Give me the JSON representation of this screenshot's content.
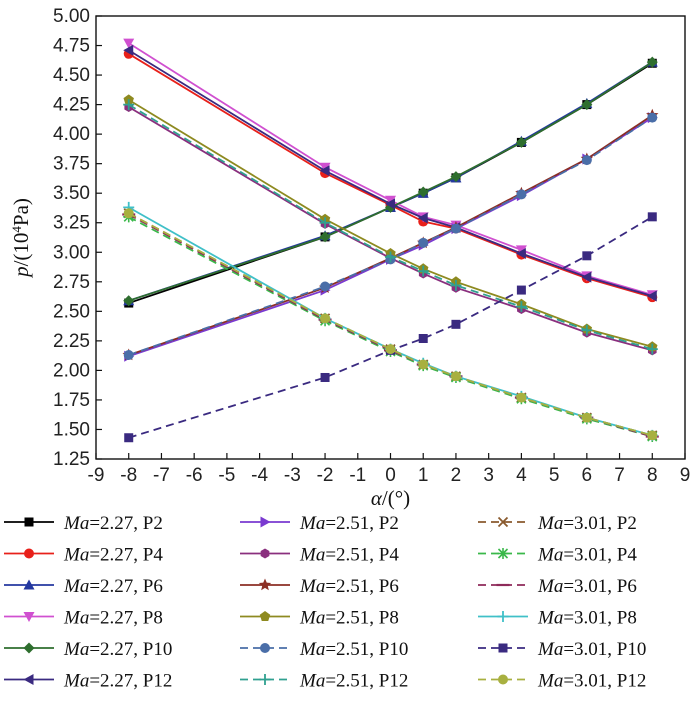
{
  "chart_data": {
    "type": "line",
    "title": "",
    "xlabel_var": "α",
    "xlabel_unit": "/(°)",
    "ylabel_var": "p",
    "ylabel_unit_pre": "/(10",
    "ylabel_unit_sup": "4",
    "ylabel_unit_post": "Pa)",
    "xlim": [
      -9,
      9
    ],
    "ylim": [
      1.25,
      5.0
    ],
    "xticks": [
      "-9",
      "-8",
      "-7",
      "-6",
      "-5",
      "-4",
      "-3",
      "-2",
      "-1",
      "0",
      "1",
      "2",
      "3",
      "4",
      "5",
      "6",
      "7",
      "8",
      "9"
    ],
    "yticks": [
      "1.25",
      "1.50",
      "1.75",
      "2.00",
      "2.25",
      "2.50",
      "2.75",
      "3.00",
      "3.25",
      "3.50",
      "3.75",
      "4.00",
      "4.25",
      "4.50",
      "4.75",
      "5.00"
    ],
    "x": [
      -8,
      -2,
      0,
      1,
      2,
      4,
      6,
      8
    ],
    "series": [
      {
        "name": "Ma=2.27, P2",
        "ma": "2.27",
        "probe": "P2",
        "color": "#000000",
        "dash": "solid",
        "marker": "square",
        "values": [
          2.57,
          3.13,
          3.38,
          3.5,
          3.63,
          3.93,
          4.25,
          4.6
        ]
      },
      {
        "name": "Ma=2.27, P4",
        "ma": "2.27",
        "probe": "P4",
        "color": "#e8201a",
        "dash": "solid",
        "marker": "circle",
        "values": [
          4.68,
          3.67,
          3.4,
          3.26,
          3.2,
          2.98,
          2.78,
          2.62
        ]
      },
      {
        "name": "Ma=2.27, P6",
        "ma": "2.27",
        "probe": "P6",
        "color": "#2438a0",
        "dash": "solid",
        "marker": "triup",
        "values": [
          2.59,
          3.14,
          3.38,
          3.5,
          3.63,
          3.94,
          4.26,
          4.61
        ]
      },
      {
        "name": "Ma=2.27, P8",
        "ma": "2.27",
        "probe": "P8",
        "color": "#d050d0",
        "dash": "solid",
        "marker": "tridown",
        "values": [
          4.77,
          3.72,
          3.44,
          3.3,
          3.23,
          3.02,
          2.8,
          2.64
        ]
      },
      {
        "name": "Ma=2.27, P10",
        "ma": "2.27",
        "probe": "P10",
        "color": "#2e6e2e",
        "dash": "solid",
        "marker": "diamond",
        "values": [
          2.59,
          3.13,
          3.38,
          3.51,
          3.64,
          3.93,
          4.25,
          4.61
        ]
      },
      {
        "name": "Ma=2.27, P12",
        "ma": "2.27",
        "probe": "P12",
        "color": "#3a2a80",
        "dash": "solid",
        "marker": "trileft",
        "values": [
          4.71,
          3.69,
          3.41,
          3.29,
          3.21,
          2.99,
          2.79,
          2.63
        ]
      },
      {
        "name": "Ma=2.51, P2",
        "ma": "2.51",
        "probe": "P2",
        "color": "#7a3ad0",
        "dash": "solid",
        "marker": "triright",
        "values": [
          2.12,
          2.68,
          2.94,
          3.06,
          3.2,
          3.48,
          3.79,
          4.14
        ]
      },
      {
        "name": "Ma=2.51, P4",
        "ma": "2.51",
        "probe": "P4",
        "color": "#8a2f7e",
        "dash": "solid",
        "marker": "hexagon",
        "values": [
          4.23,
          3.24,
          2.95,
          2.82,
          2.7,
          2.52,
          2.32,
          2.17
        ]
      },
      {
        "name": "Ma=2.51, P6",
        "ma": "2.51",
        "probe": "P6",
        "color": "#8b2e24",
        "dash": "solid",
        "marker": "star",
        "values": [
          2.13,
          2.7,
          2.95,
          3.08,
          3.21,
          3.5,
          3.79,
          4.16
        ]
      },
      {
        "name": "Ma=2.51, P8",
        "ma": "2.51",
        "probe": "P8",
        "color": "#8e8a20",
        "dash": "solid",
        "marker": "pentagon",
        "values": [
          4.29,
          3.28,
          2.99,
          2.86,
          2.75,
          2.56,
          2.35,
          2.2
        ]
      },
      {
        "name": "Ma=2.51, P10",
        "ma": "2.51",
        "probe": "P10",
        "color": "#4a6ea8",
        "dash": "dashed",
        "marker": "circle",
        "values": [
          2.13,
          2.71,
          2.94,
          3.08,
          3.2,
          3.49,
          3.78,
          4.14
        ]
      },
      {
        "name": "Ma=2.51, P12",
        "ma": "2.51",
        "probe": "P12",
        "color": "#30a090",
        "dash": "dashed",
        "marker": "plus",
        "values": [
          4.25,
          3.25,
          2.96,
          2.84,
          2.72,
          2.54,
          2.34,
          2.18
        ]
      },
      {
        "name": "Ma=3.01, P2",
        "ma": "3.01",
        "probe": "P2",
        "color": "#8a5a2e",
        "dash": "dashed",
        "marker": "x",
        "values": [
          3.33,
          2.44,
          2.18,
          2.05,
          1.95,
          1.77,
          1.6,
          1.45
        ]
      },
      {
        "name": "Ma=3.01, P4",
        "ma": "3.01",
        "probe": "P4",
        "color": "#3ab84a",
        "dash": "dashed",
        "marker": "asterisk",
        "values": [
          3.3,
          2.42,
          2.16,
          2.04,
          1.94,
          1.76,
          1.59,
          1.44
        ]
      },
      {
        "name": "Ma=3.01, P6",
        "ma": "3.01",
        "probe": "P6",
        "color": "#8e2a5a",
        "dash": "dashed",
        "marker": "hline",
        "values": [
          3.32,
          2.43,
          2.17,
          2.05,
          1.95,
          1.77,
          1.6,
          1.44
        ]
      },
      {
        "name": "Ma=3.01, P8",
        "ma": "3.01",
        "probe": "P8",
        "color": "#40c0c8",
        "dash": "solid",
        "marker": "plus",
        "values": [
          3.38,
          2.44,
          2.18,
          2.06,
          1.95,
          1.78,
          1.6,
          1.45
        ]
      },
      {
        "name": "Ma=3.01, P10",
        "ma": "3.01",
        "probe": "P10",
        "color": "#3a2a80",
        "dash": "dashed",
        "marker": "square",
        "values": [
          1.43,
          1.94,
          2.17,
          2.27,
          2.39,
          2.68,
          2.97,
          3.3
        ]
      },
      {
        "name": "Ma=3.01, P12",
        "ma": "3.01",
        "probe": "P12",
        "color": "#a8b040",
        "dash": "dashed",
        "marker": "circle",
        "values": [
          3.33,
          2.44,
          2.18,
          2.05,
          1.95,
          1.77,
          1.6,
          1.45
        ]
      }
    ],
    "legend_placement": "bottom",
    "grid": false
  }
}
